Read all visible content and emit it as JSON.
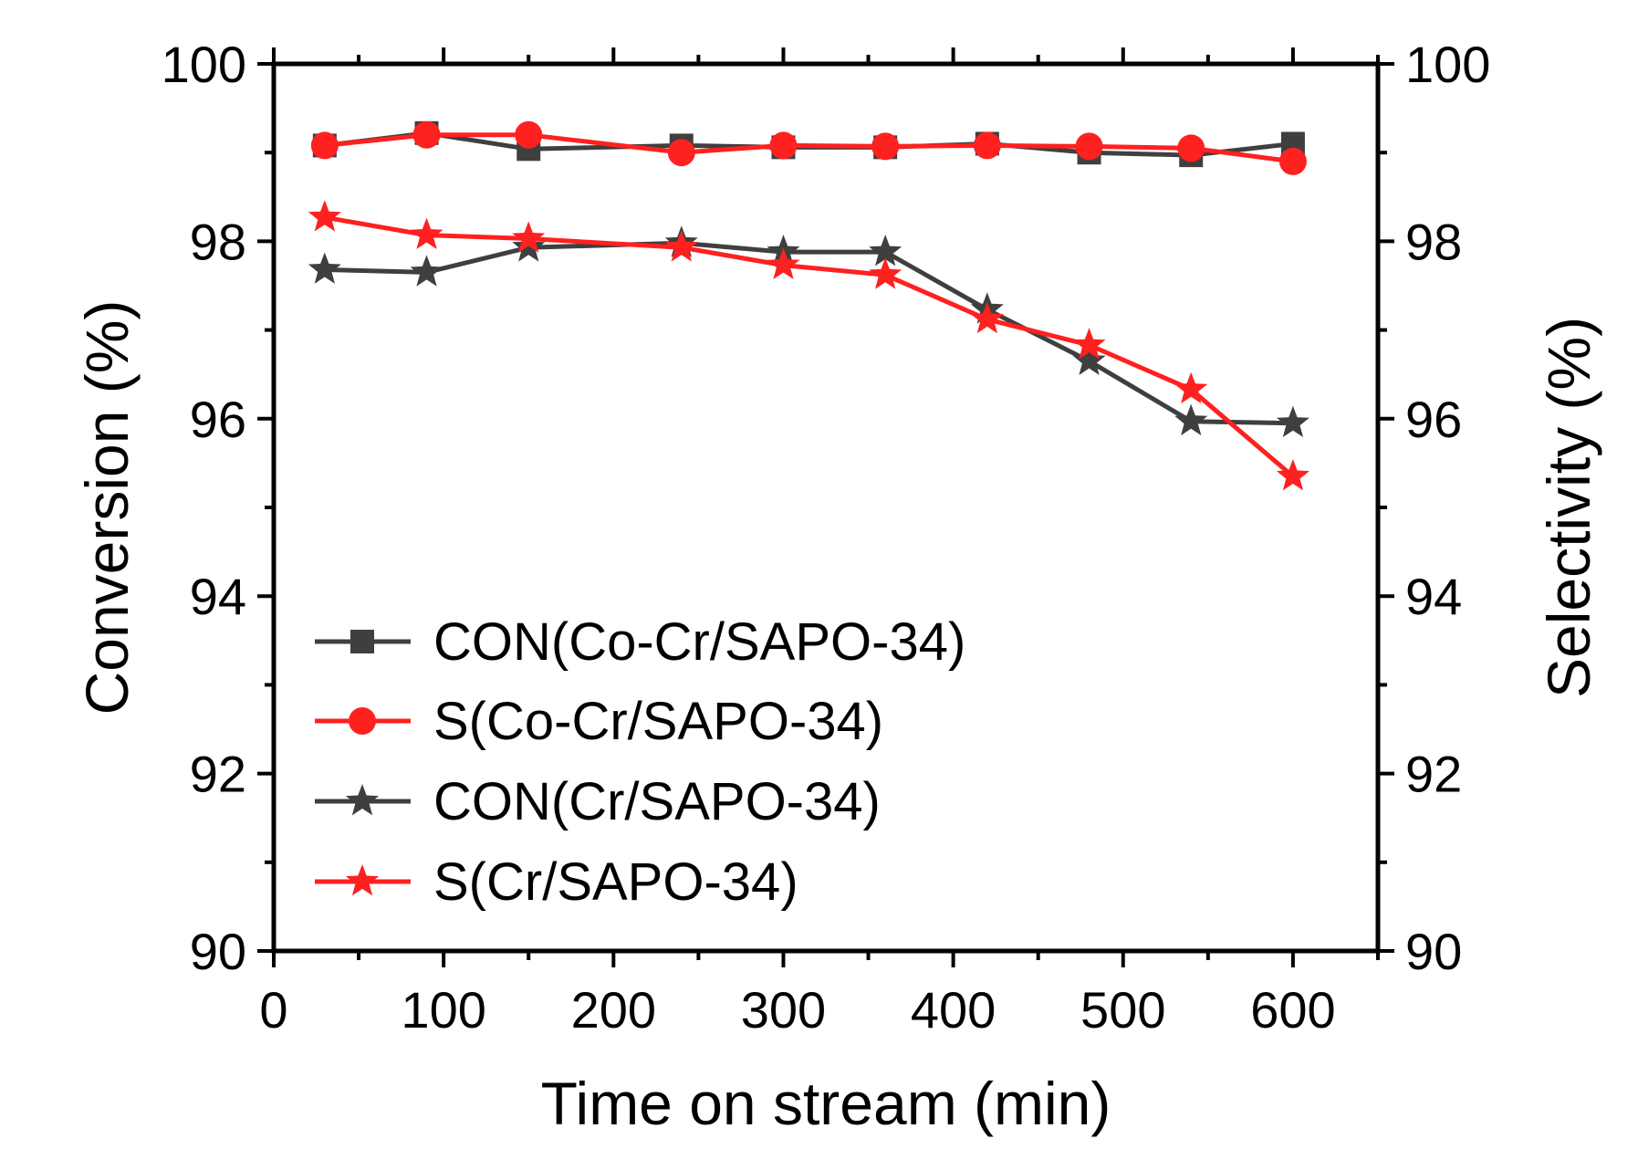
{
  "chart_data": {
    "type": "line",
    "xlabel": "Time on stream (min)",
    "ylabel_left": "Conversion (%)",
    "ylabel_right": "Selectivity (%)",
    "xlim": [
      0,
      650
    ],
    "ylim": [
      90,
      100
    ],
    "x_ticks": [
      0,
      100,
      200,
      300,
      400,
      500,
      600
    ],
    "y_ticks": [
      90,
      92,
      94,
      96,
      98,
      100
    ],
    "x_tick_labels": [
      "0",
      "100",
      "200",
      "300",
      "400",
      "500",
      "600"
    ],
    "y_tick_labels": [
      "90",
      "92",
      "94",
      "96",
      "98",
      "100"
    ],
    "legend_position": "bottom-left",
    "series": [
      {
        "name": "CON(Co-Cr/SAPO-34)",
        "color": "#3f3f3f",
        "marker": "square",
        "x": [
          30,
          90,
          150,
          240,
          300,
          360,
          420,
          480,
          540,
          600
        ],
        "y": [
          99.08,
          99.22,
          99.04,
          99.08,
          99.06,
          99.06,
          99.1,
          99.0,
          98.97,
          99.1
        ]
      },
      {
        "name": "S(Co-Cr/SAPO-34)",
        "color": "#ff2020",
        "marker": "circle",
        "x": [
          30,
          90,
          150,
          240,
          300,
          360,
          420,
          480,
          540,
          600
        ],
        "y": [
          99.08,
          99.2,
          99.2,
          99.0,
          99.08,
          99.07,
          99.08,
          99.07,
          99.05,
          98.9
        ]
      },
      {
        "name": "CON(Cr/SAPO-34)",
        "color": "#3f3f3f",
        "marker": "star",
        "x": [
          30,
          90,
          150,
          240,
          300,
          360,
          420,
          480,
          540,
          600
        ],
        "y": [
          97.68,
          97.65,
          97.93,
          97.98,
          97.88,
          97.88,
          97.23,
          96.65,
          95.97,
          95.95
        ]
      },
      {
        "name": "S(Cr/SAPO-34)",
        "color": "#ff2020",
        "marker": "star",
        "x": [
          30,
          90,
          150,
          240,
          300,
          360,
          420,
          480,
          540,
          600
        ],
        "y": [
          98.27,
          98.07,
          98.03,
          97.93,
          97.73,
          97.62,
          97.12,
          96.83,
          96.33,
          95.35
        ]
      }
    ]
  }
}
